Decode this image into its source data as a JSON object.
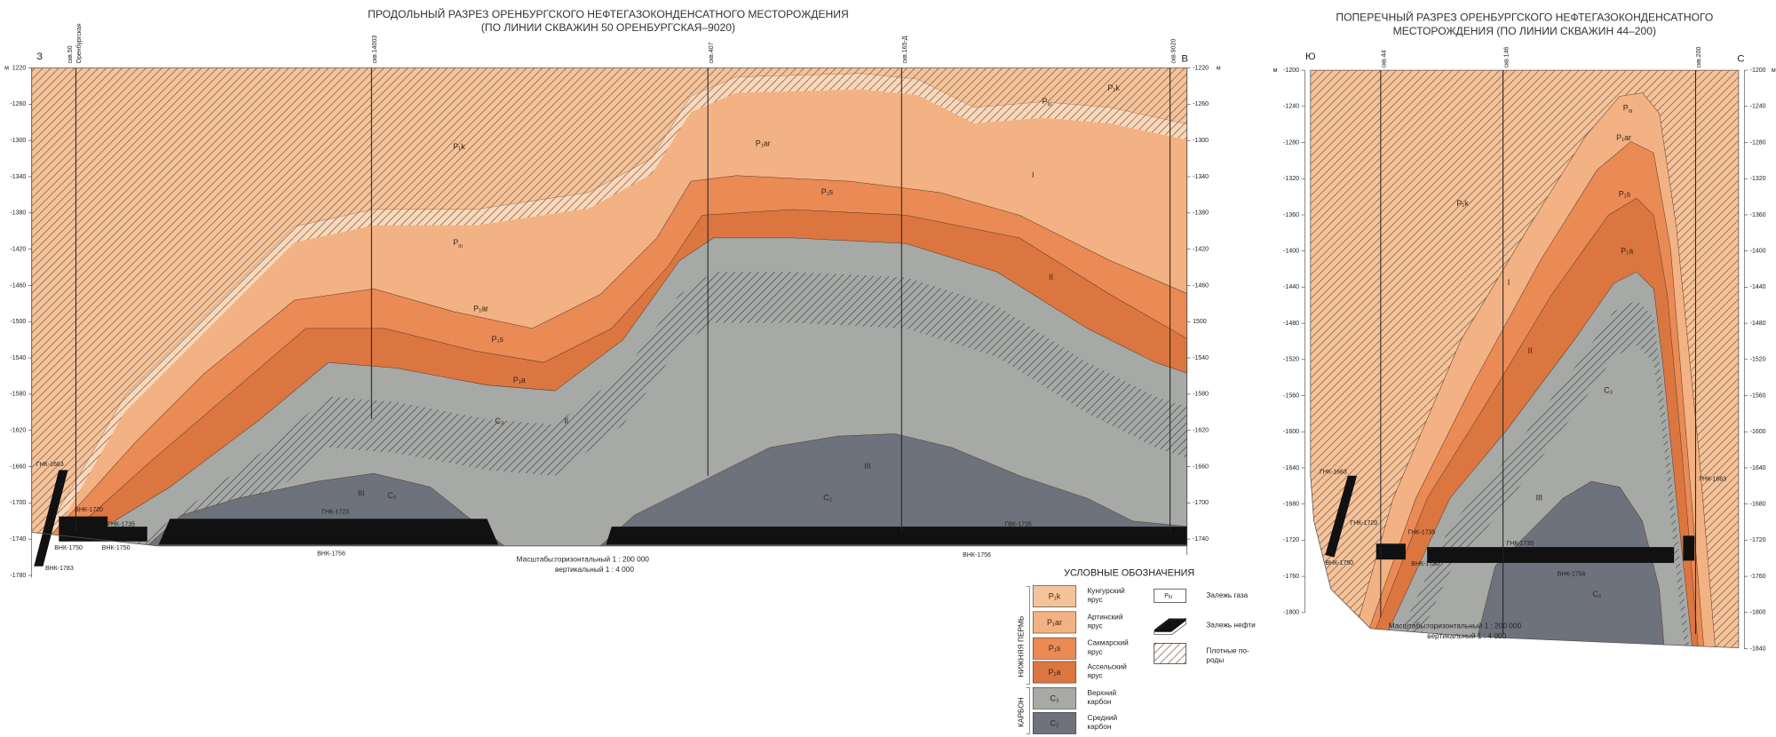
{
  "left_section": {
    "title": [
      "ПРОДОЛЬНЫЙ РАЗРЕЗ ОРЕНБУРГСКОГО НЕФТЕГАЗОКОНДЕНСАТНОГО МЕСТОРОЖДЕНИЯ",
      "(ПО ЛИНИИ СКВАЖИН 50 ОРЕНБУРГСКАЯ–9020)"
    ],
    "direction_left": "З",
    "direction_right": "В",
    "depth_unit": "м",
    "wells": [
      "скв.50",
      "Оренбургская",
      "скв.14003",
      "скв.407",
      "скв.165-Д",
      "скв.9020"
    ],
    "left_ticks": [
      {
        "value": -1220,
        "label": "1220"
      },
      -1260,
      -1300,
      -1340,
      -1380,
      -1420,
      -1460,
      -1500,
      -1540,
      -1580,
      -1620,
      -1660,
      -1700,
      -1740,
      -1780
    ],
    "right_ticks": [
      -1220,
      -1260,
      -1300,
      -1340,
      -1380,
      -1420,
      -1460,
      {
        "value": -1500,
        "label": "1500"
      },
      -1540,
      -1580,
      -1620,
      -1660,
      -1700,
      -1740
    ],
    "reservoir": {
      "symbol": "P",
      "index": "III"
    },
    "labels": [
      "P₁k",
      "P₁ar",
      "P₁s",
      "P₁a",
      "C₃",
      "II",
      "P₁ar",
      "P₁s",
      "P₁k",
      "I",
      "II",
      "III",
      "C₂",
      "III",
      "C₂"
    ],
    "contacts": [
      "ГНК-1663",
      "ВНК-1720",
      "ГНК-1735",
      "ВНК-1750",
      "ВНК-1750",
      "ВНК-1783",
      "ГНК-1723",
      "ВНК-1756",
      "ГВК-1735",
      "ВНК-1756"
    ],
    "scale": {
      "label": "Масштабы:",
      "horizontal": "горизонтальный 1 : 200 000",
      "vertical": "вертикальный 1 : 4 000"
    }
  },
  "right_section": {
    "title": [
      "ПОПЕРЕЧНЫЙ РАЗРЕЗ ОРЕНБУРГСКОГО НЕФТЕГАЗОКОНДЕНСАТНОГО",
      "МЕСТОРОЖДЕНИЯ (ПО ЛИНИИ СКВАЖИН 44–200)"
    ],
    "direction_left": "Ю",
    "direction_right": "С",
    "depth_unit": "м",
    "wells": [
      "скв.44",
      "скв.146",
      "скв.200"
    ],
    "left_ticks": [
      -1200,
      -1240,
      -1280,
      -1320,
      -1360,
      -1400,
      -1440,
      -1480,
      -1520,
      -1560,
      -1600,
      -1640,
      -1680,
      -1720,
      -1760,
      -1800
    ],
    "right_ticks": [
      -1200,
      -1240,
      -1280,
      -1320,
      -1360,
      -1400,
      -1440,
      -1480,
      -1520,
      -1560,
      -1600,
      -1640,
      -1680,
      -1720,
      -1760,
      -1800,
      -1840
    ],
    "reservoir": {
      "symbol": "P",
      "index": "III"
    },
    "labels": [
      "P₁k",
      "P₁ar",
      "P₁s",
      "P₁a",
      "C₃",
      "C₂",
      "I",
      "II",
      "III"
    ],
    "contacts": [
      "ГНК-1663",
      "ГНК-1720",
      "ГНК-1735",
      "ВНК-1750",
      "ВНК-1750",
      "ГНК-1735",
      "ВНК-1756",
      "ГНК-1663"
    ],
    "scale": {
      "label": "Масштабы:",
      "horizontal": "горизонтальный 1 : 200 000",
      "vertical": "вертикальный 1 : 4 000"
    }
  },
  "legend": {
    "title": "УСЛОВНЫЕ ОБОЗНАЧЕНИЯ",
    "groups": [
      "НИЖНЯЯ ПЕРМЬ",
      "КАРБОН"
    ],
    "units": [
      {
        "code": "P₁k",
        "name": [
          "Кунгурский",
          "ярус"
        ]
      },
      {
        "code": "P₁ar",
        "name": [
          "Артинский",
          "ярус"
        ]
      },
      {
        "code": "P₁s",
        "name": [
          "Сакмарский",
          "ярус"
        ]
      },
      {
        "code": "P₁a",
        "name": [
          "Ассельский",
          "ярус"
        ]
      },
      {
        "code": "C₃",
        "name": [
          "Верхний",
          "карбон"
        ]
      },
      {
        "code": "C₂",
        "name": [
          "Средний",
          "карбон"
        ]
      }
    ],
    "symbols": [
      "Залежь газа",
      "Залежь нефти",
      "Плотные по-",
      "роды"
    ]
  }
}
